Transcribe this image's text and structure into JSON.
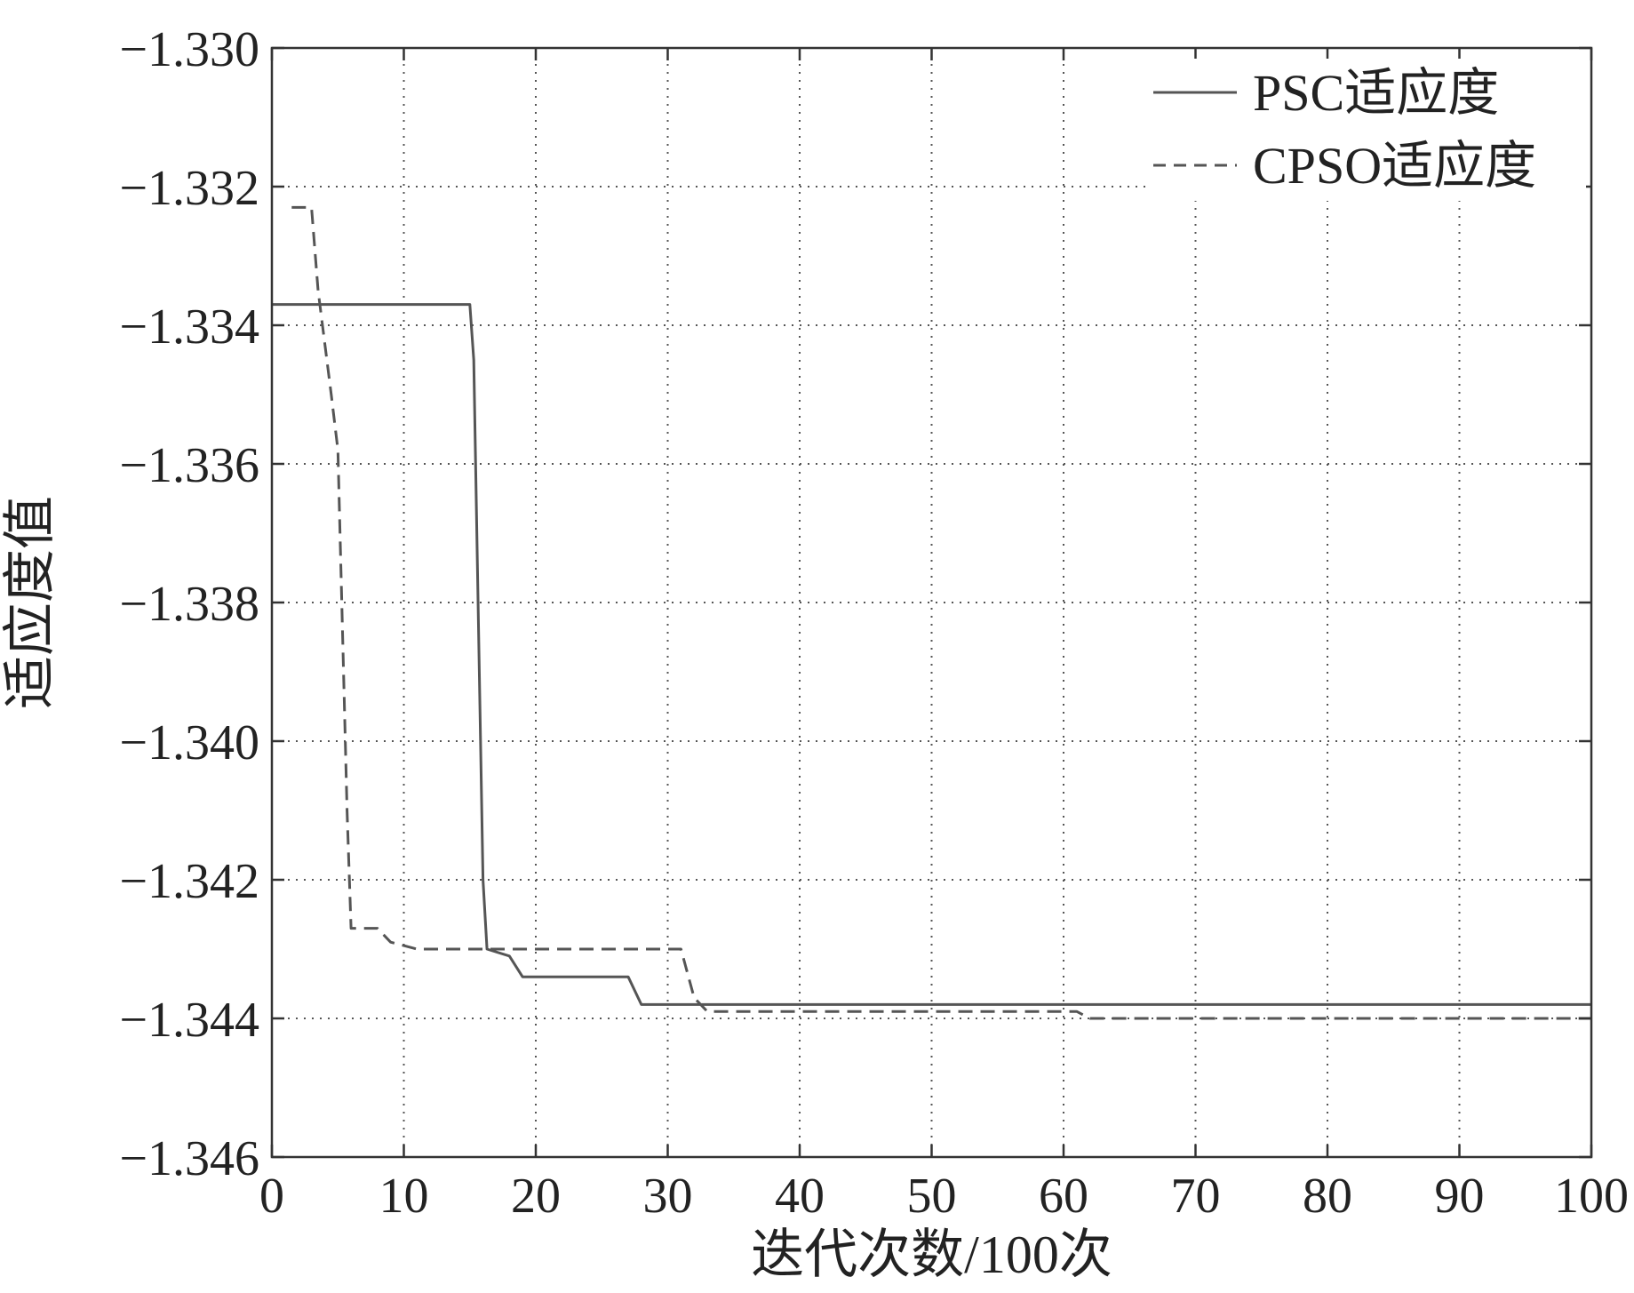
{
  "chart_data": {
    "type": "line",
    "xlabel": "迭代次数/100次",
    "ylabel": "适应度值",
    "xlim": [
      0,
      100
    ],
    "ylim": [
      -1.346,
      -1.33
    ],
    "x_ticks": [
      "0",
      "10",
      "20",
      "30",
      "40",
      "50",
      "60",
      "70",
      "80",
      "90",
      "100"
    ],
    "y_ticks": [
      "−1.330",
      "−1.332",
      "−1.334",
      "−1.336",
      "−1.338",
      "−1.340",
      "−1.342",
      "−1.344",
      "−1.346"
    ],
    "grid": true,
    "legend_position": "top-right",
    "series": [
      {
        "name": "PSC适应度",
        "style": "solid",
        "color": "#555555",
        "x": [
          0,
          15,
          15.3,
          16,
          16.3,
          18,
          19,
          27,
          28,
          100
        ],
        "y": [
          -1.3337,
          -1.3337,
          -1.3345,
          -1.342,
          -1.343,
          -1.3431,
          -1.3434,
          -1.3434,
          -1.3438,
          -1.3438
        ]
      },
      {
        "name": "CPSO适应度",
        "style": "dashed",
        "color": "#555555",
        "x": [
          1.5,
          3,
          3.5,
          4.5,
          5,
          5.7,
          6,
          8,
          9,
          11,
          31,
          32,
          33,
          45,
          46,
          61,
          62,
          92,
          100
        ],
        "y": [
          -1.3323,
          -1.3323,
          -1.3335,
          -1.335,
          -1.3358,
          -1.341,
          -1.3427,
          -1.3427,
          -1.3429,
          -1.343,
          -1.343,
          -1.3437,
          -1.3439,
          -1.3439,
          -1.3439,
          -1.3439,
          -1.344,
          -1.344,
          -1.344
        ]
      }
    ]
  }
}
